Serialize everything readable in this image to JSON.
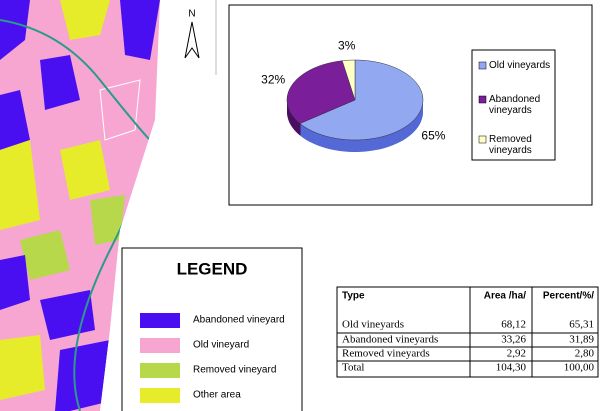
{
  "compass": "N",
  "chart_data": {
    "type": "pie",
    "categories": [
      "Old vineyards",
      "Abandoned vineyards",
      "Removed vineyards"
    ],
    "values": [
      65,
      32,
      3
    ],
    "value_labels": [
      "65%",
      "32%",
      "3%"
    ],
    "colors": [
      "#92a9f2",
      "#7a1e9a",
      "#ffffc8"
    ],
    "side_colors": [
      "#5468d6",
      "#4a0f60",
      "#c9c98e"
    ]
  },
  "legend": {
    "title": "LEGEND",
    "items": [
      {
        "label": "Abandoned vineyard",
        "color": "#4a0ff0"
      },
      {
        "label": "Old vineyard",
        "color": "#f7a6d2"
      },
      {
        "label": "Removed vineyard",
        "color": "#b6d84a"
      },
      {
        "label": "Other area",
        "color": "#e6ec2a"
      }
    ]
  },
  "table": {
    "header": [
      "Type",
      "Area /ha/",
      "Percent/%/"
    ],
    "rows": [
      [
        "Old vineyards",
        "68,12",
        "65,31"
      ],
      [
        "Abandoned vineyards",
        "33,26",
        "31,89"
      ],
      [
        "Removed vineyards",
        "2,92",
        "2,80"
      ],
      [
        "Total",
        "104,30",
        "100,00"
      ]
    ]
  }
}
